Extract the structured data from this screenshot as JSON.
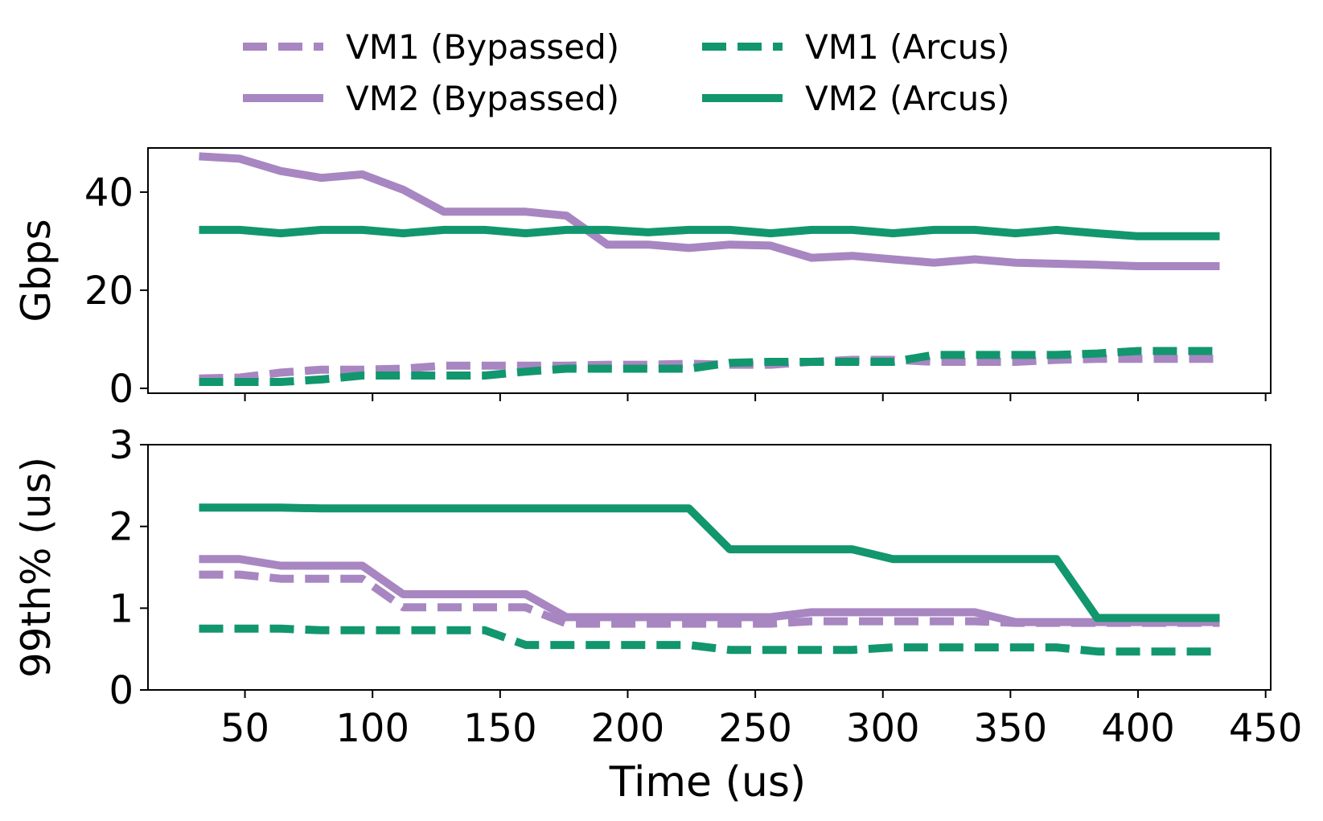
{
  "chart_data": {
    "type": "line",
    "xlabel": "Time (us)",
    "xlim": [
      12,
      452
    ],
    "xticks": [
      50,
      100,
      150,
      200,
      250,
      300,
      350,
      400,
      450
    ],
    "legend": {
      "placement": "top-center",
      "entries": [
        "VM1 (Bypassed)",
        "VM1 (Arcus)",
        "VM2 (Bypassed)",
        "VM2 (Arcus)"
      ]
    },
    "colors": {
      "bypassed": "#a886c1",
      "arcus": "#12966e"
    },
    "panels": [
      {
        "ylabel": "Gbps",
        "ylim": [
          -1,
          49
        ],
        "yticks": [
          0,
          20,
          40
        ],
        "x": [
          32,
          48,
          64,
          80,
          96,
          112,
          128,
          144,
          160,
          176,
          192,
          208,
          224,
          240,
          256,
          272,
          288,
          304,
          320,
          336,
          352,
          368,
          384,
          400,
          416,
          432
        ],
        "series": [
          {
            "name": "VM1 (Bypassed)",
            "style": "dashed",
            "color_key": "bypassed",
            "values": [
              2.0,
              2.2,
              3.2,
              3.8,
              3.8,
              4.0,
              4.6,
              4.6,
              4.6,
              4.6,
              4.8,
              4.8,
              5.0,
              4.8,
              4.8,
              5.4,
              5.8,
              5.8,
              5.4,
              5.4,
              5.4,
              5.8,
              6.0,
              6.0,
              6.0,
              6.0
            ]
          },
          {
            "name": "VM2 (Bypassed)",
            "style": "solid",
            "color_key": "bypassed",
            "values": [
              47.3,
              46.8,
              44.3,
              42.9,
              43.6,
              40.5,
              36.0,
              36.0,
              36.0,
              35.2,
              29.3,
              29.3,
              28.6,
              29.3,
              29.1,
              26.6,
              27.0,
              26.3,
              25.6,
              26.3,
              25.6,
              25.4,
              25.2,
              24.9,
              24.9,
              24.9
            ]
          },
          {
            "name": "VM1 (Arcus)",
            "style": "dashed",
            "color_key": "arcus",
            "values": [
              1.3,
              1.3,
              1.3,
              1.8,
              2.6,
              2.6,
              2.6,
              2.6,
              3.4,
              4.0,
              4.0,
              4.0,
              4.0,
              5.2,
              5.4,
              5.4,
              5.4,
              5.4,
              6.8,
              6.8,
              6.8,
              6.8,
              7.1,
              7.6,
              7.6,
              7.6
            ]
          },
          {
            "name": "VM2 (Arcus)",
            "style": "solid",
            "color_key": "arcus",
            "values": [
              32.3,
              32.3,
              31.6,
              32.3,
              32.3,
              31.6,
              32.3,
              32.3,
              31.6,
              32.3,
              32.3,
              31.8,
              32.3,
              32.3,
              31.6,
              32.3,
              32.3,
              31.6,
              32.3,
              32.3,
              31.6,
              32.3,
              31.6,
              31.0,
              31.0,
              31.0
            ]
          }
        ]
      },
      {
        "ylabel": "99th% (us)",
        "ylim": [
          0,
          3
        ],
        "yticks": [
          0,
          1,
          2,
          3
        ],
        "series": [
          {
            "name": "VM1 (Bypassed)",
            "style": "dashed",
            "color_key": "bypassed",
            "x": [
              32,
              48,
              64,
              96,
              112,
              160,
              176,
              224,
              240,
              256,
              272,
              336,
              352,
              432
            ],
            "values": [
              1.41,
              1.41,
              1.36,
              1.36,
              1.01,
              1.01,
              0.81,
              0.81,
              0.81,
              0.81,
              0.84,
              0.84,
              0.82,
              0.82
            ]
          },
          {
            "name": "VM2 (Bypassed)",
            "style": "solid",
            "color_key": "bypassed",
            "x": [
              32,
              48,
              64,
              96,
              112,
              160,
              176,
              256,
              272,
              336,
              352,
              432
            ],
            "values": [
              1.6,
              1.6,
              1.52,
              1.52,
              1.17,
              1.17,
              0.89,
              0.89,
              0.95,
              0.95,
              0.83,
              0.83
            ]
          },
          {
            "name": "VM1 (Arcus)",
            "style": "dashed",
            "color_key": "arcus",
            "x": [
              32,
              64,
              80,
              144,
              160,
              224,
              240,
              288,
              304,
              368,
              384,
              432
            ],
            "values": [
              0.75,
              0.75,
              0.73,
              0.73,
              0.55,
              0.55,
              0.49,
              0.49,
              0.52,
              0.52,
              0.47,
              0.47
            ]
          },
          {
            "name": "VM2 (Arcus)",
            "style": "solid",
            "color_key": "arcus",
            "x": [
              32,
              64,
              80,
              224,
              240,
              288,
              304,
              368,
              384,
              432
            ],
            "values": [
              2.23,
              2.23,
              2.22,
              2.22,
              1.72,
              1.72,
              1.6,
              1.6,
              0.88,
              0.88
            ]
          }
        ]
      }
    ]
  }
}
